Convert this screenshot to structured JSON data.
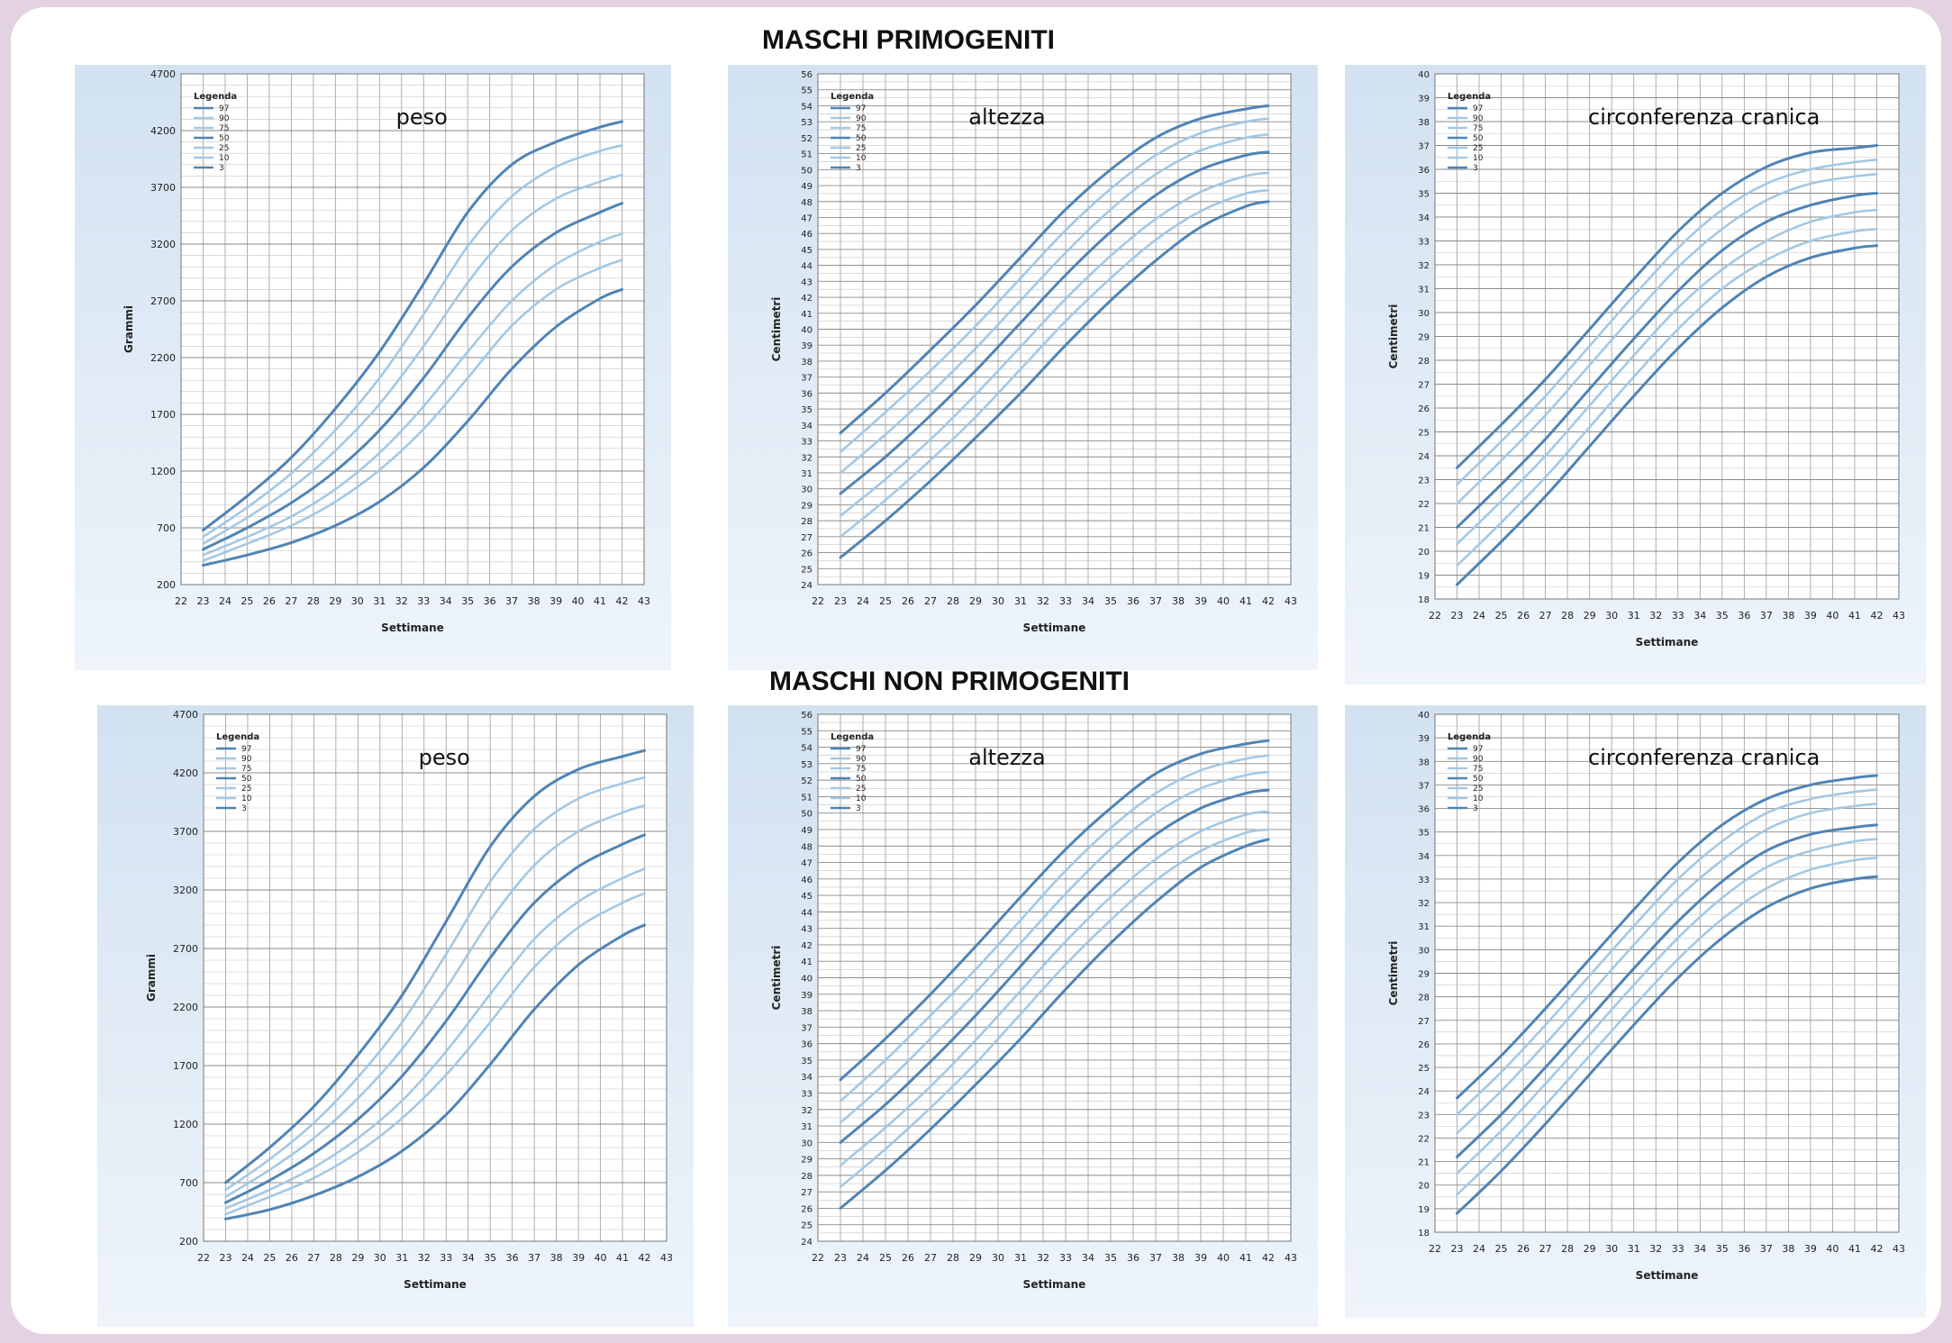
{
  "sections": [
    {
      "title": "MASCHI PRIMOGENITI"
    },
    {
      "title": "MASCHI NON PRIMOGENITI"
    }
  ],
  "colors": {
    "page_border": "#e3d3e2",
    "panel": "#dde9f4",
    "plot": "#ffffff",
    "grid": "#9a9a9a",
    "curve_dark": "#4f84b5",
    "curve_light": "#a3c8e4"
  },
  "chart_data": [
    {
      "type": "line",
      "title": "peso",
      "ylabel": "Grammi",
      "xlabel": "Settimane",
      "xlim": [
        22,
        43
      ],
      "ylim": [
        200,
        4700
      ],
      "xticks": [
        22,
        23,
        24,
        25,
        26,
        27,
        28,
        29,
        30,
        31,
        32,
        33,
        34,
        35,
        36,
        37,
        38,
        39,
        40,
        41,
        42,
        43
      ],
      "yticks": [
        200,
        700,
        1200,
        1700,
        2200,
        2700,
        3200,
        3700,
        4200,
        4700
      ],
      "grid": true,
      "legend_title": "Legenda",
      "legend_position": "top-left",
      "x": [
        23,
        25,
        27,
        29,
        31,
        33,
        35,
        37,
        39,
        41,
        42
      ],
      "series": [
        {
          "name": "97",
          "values": [
            680,
            980,
            1320,
            1750,
            2250,
            2850,
            3480,
            3900,
            4100,
            4230,
            4280
          ]
        },
        {
          "name": "90",
          "values": [
            620,
            880,
            1180,
            1560,
            2020,
            2580,
            3180,
            3620,
            3880,
            4020,
            4070
          ]
        },
        {
          "name": "75",
          "values": [
            560,
            790,
            1050,
            1380,
            1790,
            2300,
            2860,
            3320,
            3600,
            3750,
            3810
          ]
        },
        {
          "name": "50",
          "values": [
            510,
            700,
            920,
            1200,
            1560,
            2020,
            2550,
            3000,
            3300,
            3480,
            3560
          ]
        },
        {
          "name": "25",
          "values": [
            460,
            620,
            800,
            1040,
            1360,
            1770,
            2250,
            2700,
            3020,
            3220,
            3290
          ]
        },
        {
          "name": "10",
          "values": [
            410,
            560,
            720,
            930,
            1210,
            1570,
            2020,
            2480,
            2800,
            2990,
            3060
          ]
        },
        {
          "name": "3",
          "values": [
            370,
            460,
            570,
            720,
            930,
            1230,
            1640,
            2100,
            2470,
            2720,
            2800
          ]
        }
      ]
    },
    {
      "type": "line",
      "title": "altezza",
      "ylabel": "Centimetri",
      "xlabel": "Settimane",
      "xlim": [
        22,
        43
      ],
      "ylim": [
        24,
        56
      ],
      "xticks": [
        22,
        23,
        24,
        25,
        26,
        27,
        28,
        29,
        30,
        31,
        32,
        33,
        34,
        35,
        36,
        37,
        38,
        39,
        40,
        41,
        42,
        43
      ],
      "yticks": [
        24,
        25,
        26,
        27,
        28,
        29,
        30,
        31,
        32,
        33,
        34,
        35,
        36,
        37,
        38,
        39,
        40,
        41,
        42,
        43,
        44,
        45,
        46,
        47,
        48,
        49,
        50,
        51,
        52,
        53,
        54,
        55,
        56
      ],
      "grid": true,
      "legend_title": "Legenda",
      "legend_position": "top-left",
      "x": [
        23,
        25,
        27,
        29,
        31,
        33,
        35,
        37,
        39,
        41,
        42
      ],
      "series": [
        {
          "name": "97",
          "values": [
            33.5,
            36,
            38.7,
            41.5,
            44.5,
            47.5,
            50,
            52,
            53.2,
            53.8,
            54
          ]
        },
        {
          "name": "90",
          "values": [
            32.3,
            34.8,
            37.4,
            40.2,
            43.2,
            46.2,
            48.8,
            50.9,
            52.3,
            53,
            53.2
          ]
        },
        {
          "name": "75",
          "values": [
            31,
            33.4,
            36,
            38.8,
            41.8,
            44.8,
            47.5,
            49.7,
            51.2,
            52,
            52.2
          ]
        },
        {
          "name": "50",
          "values": [
            29.7,
            32,
            34.6,
            37.4,
            40.4,
            43.4,
            46.1,
            48.4,
            50,
            50.9,
            51.1
          ]
        },
        {
          "name": "25",
          "values": [
            28.3,
            30.6,
            33.1,
            35.9,
            38.9,
            41.9,
            44.6,
            46.9,
            48.6,
            49.6,
            49.8
          ]
        },
        {
          "name": "10",
          "values": [
            27,
            29.3,
            31.8,
            34.5,
            37.5,
            40.5,
            43.2,
            45.6,
            47.4,
            48.5,
            48.7
          ]
        },
        {
          "name": "3",
          "values": [
            25.7,
            28,
            30.5,
            33.2,
            36,
            39,
            41.8,
            44.3,
            46.4,
            47.7,
            48
          ]
        }
      ]
    },
    {
      "type": "line",
      "title": "circonferenza cranica",
      "ylabel": "Centimetri",
      "xlabel": "Settimane",
      "xlim": [
        22,
        43
      ],
      "ylim": [
        18,
        40
      ],
      "xticks": [
        22,
        23,
        24,
        25,
        26,
        27,
        28,
        29,
        30,
        31,
        32,
        33,
        34,
        35,
        36,
        37,
        38,
        39,
        40,
        41,
        42,
        43
      ],
      "yticks": [
        18,
        19,
        20,
        21,
        22,
        23,
        24,
        25,
        26,
        27,
        28,
        29,
        30,
        31,
        32,
        33,
        34,
        35,
        36,
        37,
        38,
        39,
        40
      ],
      "grid": true,
      "legend_title": "Legenda",
      "legend_position": "top-left",
      "x": [
        23,
        25,
        27,
        29,
        31,
        33,
        35,
        37,
        39,
        41,
        42
      ],
      "series": [
        {
          "name": "97",
          "values": [
            23.5,
            25.3,
            27.2,
            29.3,
            31.4,
            33.4,
            35,
            36.1,
            36.7,
            36.9,
            37
          ]
        },
        {
          "name": "90",
          "values": [
            22.8,
            24.6,
            26.5,
            28.6,
            30.7,
            32.7,
            34.3,
            35.4,
            36,
            36.3,
            36.4
          ]
        },
        {
          "name": "75",
          "values": [
            22,
            23.8,
            25.7,
            27.8,
            29.9,
            31.9,
            33.5,
            34.7,
            35.4,
            35.7,
            35.8
          ]
        },
        {
          "name": "50",
          "values": [
            21,
            22.8,
            24.7,
            26.8,
            28.9,
            30.9,
            32.6,
            33.8,
            34.5,
            34.9,
            35
          ]
        },
        {
          "name": "25",
          "values": [
            20.3,
            22.1,
            24,
            26.1,
            28.2,
            30.2,
            31.8,
            33,
            33.8,
            34.2,
            34.3
          ]
        },
        {
          "name": "10",
          "values": [
            19.4,
            21.2,
            23.1,
            25.2,
            27.3,
            29.3,
            31,
            32.2,
            33,
            33.4,
            33.5
          ]
        },
        {
          "name": "3",
          "values": [
            18.6,
            20.4,
            22.3,
            24.4,
            26.5,
            28.5,
            30.2,
            31.5,
            32.3,
            32.7,
            32.8
          ]
        }
      ]
    },
    {
      "type": "line",
      "title": "peso",
      "ylabel": "Grammi",
      "xlabel": "Settimane",
      "xlim": [
        22,
        43
      ],
      "ylim": [
        200,
        4700
      ],
      "xticks": [
        22,
        23,
        24,
        25,
        26,
        27,
        28,
        29,
        30,
        31,
        32,
        33,
        34,
        35,
        36,
        37,
        38,
        39,
        40,
        41,
        42,
        43
      ],
      "yticks": [
        200,
        700,
        1200,
        1700,
        2200,
        2700,
        3200,
        3700,
        4200,
        4700
      ],
      "grid": true,
      "legend_title": "Legenda",
      "legend_position": "top-left",
      "x": [
        23,
        25,
        27,
        29,
        31,
        33,
        35,
        37,
        39,
        41,
        42
      ],
      "series": [
        {
          "name": "97",
          "values": [
            700,
            1000,
            1350,
            1790,
            2300,
            2930,
            3570,
            4000,
            4230,
            4340,
            4390
          ]
        },
        {
          "name": "90",
          "values": [
            640,
            900,
            1210,
            1600,
            2070,
            2650,
            3270,
            3720,
            3980,
            4110,
            4160
          ]
        },
        {
          "name": "75",
          "values": [
            580,
            810,
            1080,
            1420,
            1840,
            2360,
            2940,
            3410,
            3700,
            3860,
            3920
          ]
        },
        {
          "name": "50",
          "values": [
            530,
            720,
            950,
            1240,
            1610,
            2080,
            2620,
            3090,
            3400,
            3590,
            3670
          ]
        },
        {
          "name": "25",
          "values": [
            480,
            640,
            830,
            1080,
            1400,
            1820,
            2310,
            2780,
            3100,
            3300,
            3380
          ]
        },
        {
          "name": "10",
          "values": [
            430,
            580,
            740,
            960,
            1250,
            1620,
            2070,
            2540,
            2880,
            3090,
            3170
          ]
        },
        {
          "name": "3",
          "values": [
            390,
            470,
            590,
            750,
            970,
            1280,
            1710,
            2180,
            2560,
            2810,
            2900
          ]
        }
      ]
    },
    {
      "type": "line",
      "title": "altezza",
      "ylabel": "Centimetri",
      "xlabel": "Settimane",
      "xlim": [
        22,
        43
      ],
      "ylim": [
        24,
        56
      ],
      "xticks": [
        22,
        23,
        24,
        25,
        26,
        27,
        28,
        29,
        30,
        31,
        32,
        33,
        34,
        35,
        36,
        37,
        38,
        39,
        40,
        41,
        42,
        43
      ],
      "yticks": [
        24,
        25,
        26,
        27,
        28,
        29,
        30,
        31,
        32,
        33,
        34,
        35,
        36,
        37,
        38,
        39,
        40,
        41,
        42,
        43,
        44,
        45,
        46,
        47,
        48,
        49,
        50,
        51,
        52,
        53,
        54,
        55,
        56
      ],
      "grid": true,
      "legend_title": "Legenda",
      "legend_position": "top-left",
      "x": [
        23,
        25,
        27,
        29,
        31,
        33,
        35,
        37,
        39,
        41,
        42
      ],
      "series": [
        {
          "name": "97",
          "values": [
            33.8,
            36.3,
            39,
            41.9,
            44.9,
            47.8,
            50.3,
            52.4,
            53.6,
            54.2,
            54.4
          ]
        },
        {
          "name": "90",
          "values": [
            32.5,
            35,
            37.7,
            40.5,
            43.5,
            46.5,
            49.1,
            51.2,
            52.6,
            53.3,
            53.5
          ]
        },
        {
          "name": "75",
          "values": [
            31.2,
            33.6,
            36.3,
            39.1,
            42.1,
            45.1,
            47.8,
            50,
            51.5,
            52.3,
            52.5
          ]
        },
        {
          "name": "50",
          "values": [
            30,
            32.3,
            34.9,
            37.7,
            40.7,
            43.7,
            46.4,
            48.7,
            50.3,
            51.2,
            51.4
          ]
        },
        {
          "name": "25",
          "values": [
            28.6,
            30.9,
            33.4,
            36.2,
            39.2,
            42.2,
            44.9,
            47.2,
            48.9,
            49.9,
            50.1
          ]
        },
        {
          "name": "10",
          "values": [
            27.3,
            29.6,
            32.1,
            34.8,
            37.8,
            40.8,
            43.5,
            45.9,
            47.7,
            48.8,
            49
          ]
        },
        {
          "name": "3",
          "values": [
            26,
            28.3,
            30.8,
            33.5,
            36.3,
            39.3,
            42.1,
            44.6,
            46.7,
            48,
            48.4
          ]
        }
      ]
    },
    {
      "type": "line",
      "title": "circonferenza cranica",
      "ylabel": "Centimetri",
      "xlabel": "Settimane",
      "xlim": [
        22,
        43
      ],
      "ylim": [
        18,
        40
      ],
      "xticks": [
        22,
        23,
        24,
        25,
        26,
        27,
        28,
        29,
        30,
        31,
        32,
        33,
        34,
        35,
        36,
        37,
        38,
        39,
        40,
        41,
        42,
        43
      ],
      "yticks": [
        18,
        19,
        20,
        21,
        22,
        23,
        24,
        25,
        26,
        27,
        28,
        29,
        30,
        31,
        32,
        33,
        34,
        35,
        36,
        37,
        38,
        39,
        40
      ],
      "grid": true,
      "legend_title": "Legenda",
      "legend_position": "top-left",
      "x": [
        23,
        25,
        27,
        29,
        31,
        33,
        35,
        37,
        39,
        41,
        42
      ],
      "series": [
        {
          "name": "97",
          "values": [
            23.7,
            25.5,
            27.5,
            29.6,
            31.7,
            33.7,
            35.3,
            36.4,
            37,
            37.3,
            37.4
          ]
        },
        {
          "name": "90",
          "values": [
            23,
            24.8,
            26.8,
            28.9,
            31,
            33,
            34.6,
            35.8,
            36.4,
            36.7,
            36.8
          ]
        },
        {
          "name": "75",
          "values": [
            22.2,
            24,
            26,
            28.1,
            30.2,
            32.2,
            33.8,
            35.1,
            35.8,
            36.1,
            36.2
          ]
        },
        {
          "name": "50",
          "values": [
            21.2,
            23,
            25,
            27.1,
            29.2,
            31.2,
            32.9,
            34.2,
            34.9,
            35.2,
            35.3
          ]
        },
        {
          "name": "25",
          "values": [
            20.5,
            22.3,
            24.3,
            26.4,
            28.5,
            30.5,
            32.2,
            33.5,
            34.2,
            34.6,
            34.7
          ]
        },
        {
          "name": "10",
          "values": [
            19.6,
            21.4,
            23.4,
            25.5,
            27.6,
            29.6,
            31.3,
            32.6,
            33.4,
            33.8,
            33.9
          ]
        },
        {
          "name": "3",
          "values": [
            18.8,
            20.6,
            22.6,
            24.7,
            26.8,
            28.8,
            30.5,
            31.8,
            32.6,
            33,
            33.1
          ]
        }
      ]
    }
  ]
}
